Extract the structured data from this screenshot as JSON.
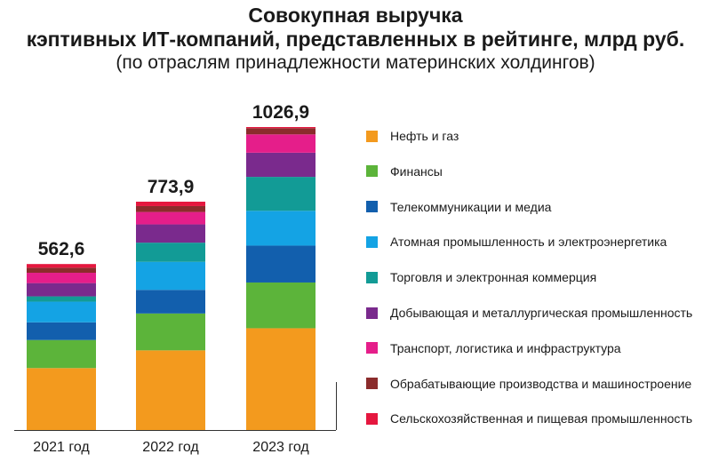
{
  "title": {
    "line1": "Совокупная выручка",
    "line2": "кэптивных ИТ-компаний, представленных в рейтинге, млрд руб.",
    "subtitle": "(по отраслям принадлежности материнских холдингов)"
  },
  "chart_data": {
    "type": "bar",
    "stacked": true,
    "categories": [
      "2021 год",
      "2022 год",
      "2023 год"
    ],
    "totals": [
      562.6,
      773.9,
      1026.9
    ],
    "total_labels": [
      "562,6",
      "773,9",
      "1026,9"
    ],
    "ylim": [
      0,
      1026.9
    ],
    "grid": false,
    "legend_position": "right",
    "series": [
      {
        "name": "Нефть и газ",
        "color": "#f39a1e",
        "values": [
          210,
          270,
          345
        ]
      },
      {
        "name": "Финансы",
        "color": "#5cb43a",
        "values": [
          95,
          125,
          155
        ]
      },
      {
        "name": "Телекоммуникации и медиа",
        "color": "#125fad",
        "values": [
          60,
          80,
          125
        ]
      },
      {
        "name": "Атомная промышленность и электроэнергетика",
        "color": "#14a3e4",
        "values": [
          70,
          95,
          118
        ]
      },
      {
        "name": "Торговля и электронная коммерция",
        "color": "#129b96",
        "values": [
          18,
          65,
          115
        ]
      },
      {
        "name": "Добывающая и металлургическая промышленность",
        "color": "#7a2a8d",
        "values": [
          45,
          62,
          82
        ]
      },
      {
        "name": "Транспорт, логистика и инфраструктура",
        "color": "#e51e8a",
        "values": [
          35,
          42,
          62
        ]
      },
      {
        "name": "Обрабатывающие производства и машиностроение",
        "color": "#8b2c2c",
        "values": [
          17,
          20,
          21
        ]
      },
      {
        "name": "Сельскохозяйственная и пищевая промышленность",
        "color": "#e5173f",
        "values": [
          12.6,
          14.9,
          3.9
        ]
      }
    ]
  }
}
